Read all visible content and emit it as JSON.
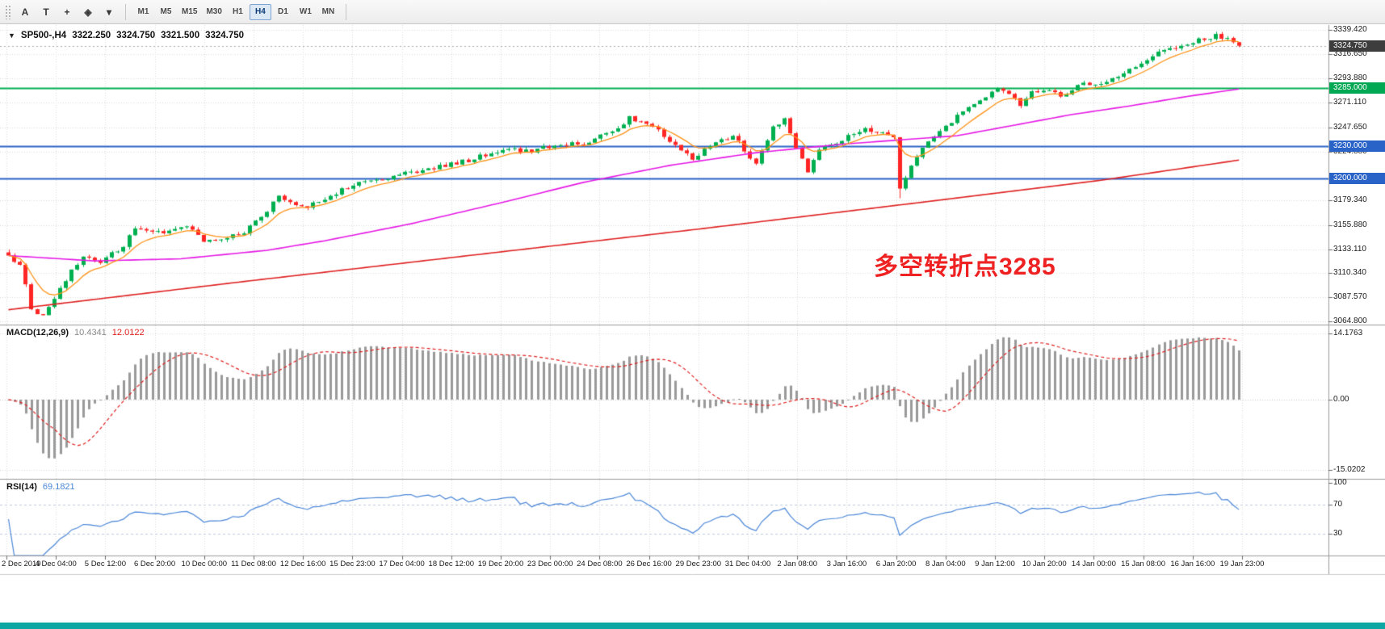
{
  "toolbar": {
    "tools": [
      {
        "name": "pointer-tool-icon",
        "glyph": "A"
      },
      {
        "name": "text-label-tool-icon",
        "glyph": "T"
      },
      {
        "name": "crosshair-tool-icon",
        "glyph": "+"
      },
      {
        "name": "shapes-tool-icon",
        "glyph": "◈"
      },
      {
        "name": "shapes-dropdown-icon",
        "glyph": "▾"
      }
    ],
    "timeframes": [
      "M1",
      "M5",
      "M15",
      "M30",
      "H1",
      "H4",
      "D1",
      "W1",
      "MN"
    ],
    "active_timeframe": "H4"
  },
  "chart_header": {
    "dropdown_glyph": "▼",
    "symbol_period": "SP500-,H4",
    "open": "3322.250",
    "high": "3324.750",
    "low": "3321.500",
    "close": "3324.750"
  },
  "price_scale": {
    "ticks": [
      {
        "label": "3339.420",
        "value": 3339.42
      },
      {
        "label": "3316.650",
        "value": 3316.65
      },
      {
        "label": "3293.880",
        "value": 3293.88
      },
      {
        "label": "3271.110",
        "value": 3271.11
      },
      {
        "label": "3247.650",
        "value": 3247.65
      },
      {
        "label": "3224.880",
        "value": 3224.88
      },
      {
        "label": "3179.340",
        "value": 3179.34
      },
      {
        "label": "3155.880",
        "value": 3155.88
      },
      {
        "label": "3133.110",
        "value": 3133.11
      },
      {
        "label": "3110.340",
        "value": 3110.34
      },
      {
        "label": "3087.570",
        "value": 3087.57
      },
      {
        "label": "3064.800",
        "value": 3064.8
      }
    ],
    "current_price": {
      "label": "3324.750",
      "value": 3324.75,
      "box_color": "#3d3d3d"
    },
    "level_badges": [
      {
        "label": "3285.000",
        "value": 3285,
        "box_color": "#00a854"
      },
      {
        "label": "3230.000",
        "value": 3230,
        "box_color": "#2a63c8"
      },
      {
        "label": "3200.000",
        "value": 3200,
        "box_color": "#2a63c8"
      }
    ]
  },
  "annotation": {
    "text": "多空转折点3285",
    "color": "#ee2222"
  },
  "macd_panel": {
    "label": "MACD(12,26,9)",
    "value_main": "10.4341",
    "value_signal": "12.0122",
    "main_value_color": "#8a8a8a",
    "signal_value_color": "#e02020",
    "histogram_color": "#9a9a9a",
    "signal_line_color": "#e02020",
    "scale": [
      {
        "label": "14.1763",
        "value": 14.1763
      },
      {
        "label": "0.00",
        "value": 0
      },
      {
        "label": "-15.0202",
        "value": -15.0202
      }
    ]
  },
  "rsi_panel": {
    "label": "RSI(14)",
    "value": "69.1821",
    "line_color": "#4a86d8",
    "scale": [
      {
        "label": "100",
        "value": 100
      },
      {
        "label": "70",
        "value": 70
      },
      {
        "label": "30",
        "value": 30
      }
    ],
    "levels": [
      70,
      30
    ]
  },
  "time_axis": {
    "labels": [
      "2 Dec 2019",
      "4 Dec 04:00",
      "5 Dec 12:00",
      "6 Dec 20:00",
      "10 Dec 00:00",
      "11 Dec 08:00",
      "12 Dec 16:00",
      "15 Dec 23:00",
      "17 Dec 04:00",
      "18 Dec 12:00",
      "19 Dec 20:00",
      "23 Dec 00:00",
      "24 Dec 08:00",
      "26 Dec 16:00",
      "29 Dec 23:00",
      "31 Dec 04:00",
      "2 Jan 08:00",
      "3 Jan 16:00",
      "6 Jan 20:00",
      "8 Jan 04:00",
      "9 Jan 12:00",
      "10 Jan 20:00",
      "14 Jan 00:00",
      "15 Jan 08:00",
      "16 Jan 16:00",
      "19 Jan 23:00"
    ]
  },
  "taskbar": {
    "color": "#0ca6a3"
  },
  "chart_data": {
    "type": "candlestick",
    "symbol": "SP500-",
    "timeframe": "H4",
    "title": "SP500-,H4",
    "ohlc_current": {
      "open": 3322.25,
      "high": 3324.75,
      "low": 3321.5,
      "close": 3324.75
    },
    "visible_price_range": [
      3064.8,
      3339.42
    ],
    "time_start": "2 Dec 2019",
    "time_end": "19 Jan 23:00",
    "candles_count": 215,
    "up_color": "#00b050",
    "down_color": "#ff2525",
    "close_waypoints": [
      [
        0,
        3128
      ],
      [
        2,
        3118
      ],
      [
        4,
        3078
      ],
      [
        6,
        3070
      ],
      [
        8,
        3086
      ],
      [
        10,
        3105
      ],
      [
        13,
        3126
      ],
      [
        16,
        3120
      ],
      [
        20,
        3136
      ],
      [
        22,
        3153
      ],
      [
        27,
        3150
      ],
      [
        31,
        3156
      ],
      [
        34,
        3141
      ],
      [
        38,
        3144
      ],
      [
        41,
        3150
      ],
      [
        45,
        3170
      ],
      [
        47,
        3184
      ],
      [
        51,
        3172
      ],
      [
        54,
        3178
      ],
      [
        60,
        3195
      ],
      [
        66,
        3201
      ],
      [
        73,
        3208
      ],
      [
        80,
        3217
      ],
      [
        87,
        3228
      ],
      [
        91,
        3224
      ],
      [
        94,
        3230
      ],
      [
        101,
        3234
      ],
      [
        106,
        3248
      ],
      [
        108,
        3257
      ],
      [
        112,
        3250
      ],
      [
        115,
        3235
      ],
      [
        119,
        3218
      ],
      [
        122,
        3232
      ],
      [
        126,
        3240
      ],
      [
        130,
        3213
      ],
      [
        133,
        3247
      ],
      [
        135,
        3258
      ],
      [
        137,
        3230
      ],
      [
        139,
        3207
      ],
      [
        141,
        3226
      ],
      [
        146,
        3240
      ],
      [
        149,
        3246
      ],
      [
        152,
        3244
      ],
      [
        154,
        3238
      ],
      [
        155,
        3192
      ],
      [
        157,
        3212
      ],
      [
        159,
        3228
      ],
      [
        162,
        3244
      ],
      [
        165,
        3258
      ],
      [
        168,
        3270
      ],
      [
        172,
        3286
      ],
      [
        174,
        3280
      ],
      [
        176,
        3268
      ],
      [
        178,
        3280
      ],
      [
        180,
        3283
      ],
      [
        183,
        3278
      ],
      [
        187,
        3290
      ],
      [
        190,
        3288
      ],
      [
        194,
        3298
      ],
      [
        197,
        3308
      ],
      [
        200,
        3318
      ],
      [
        203,
        3324
      ],
      [
        207,
        3330
      ],
      [
        210,
        3334
      ],
      [
        212,
        3330
      ],
      [
        214,
        3324.75
      ]
    ],
    "noise_seed": 12,
    "noise_amplitude": 2.2,
    "wick_amplitude": 2.6,
    "spike": {
      "index": 155,
      "low": 3181
    },
    "last_close": 3324.75,
    "moving_averages": [
      {
        "name": "ma-fast",
        "color": "#ff9318",
        "type": "ema_of_closes",
        "period": 8
      },
      {
        "name": "ma-mid",
        "color": "#e619e6",
        "type": "waypoints",
        "waypoints": [
          [
            0,
            3127
          ],
          [
            15,
            3122
          ],
          [
            30,
            3124
          ],
          [
            45,
            3132
          ],
          [
            55,
            3141
          ],
          [
            70,
            3157
          ],
          [
            85,
            3176
          ],
          [
            100,
            3196
          ],
          [
            115,
            3212
          ],
          [
            130,
            3224
          ],
          [
            145,
            3232
          ],
          [
            155,
            3236
          ],
          [
            165,
            3240
          ],
          [
            175,
            3250
          ],
          [
            185,
            3260
          ],
          [
            195,
            3268
          ],
          [
            205,
            3277
          ],
          [
            214,
            3284
          ]
        ]
      },
      {
        "name": "ma-slow",
        "color": "#e02020",
        "type": "waypoints",
        "waypoints": [
          [
            0,
            3076
          ],
          [
            40,
            3102
          ],
          [
            80,
            3127
          ],
          [
            120,
            3152
          ],
          [
            160,
            3178
          ],
          [
            190,
            3198
          ],
          [
            214,
            3217
          ]
        ]
      }
    ],
    "horizontal_lines": [
      {
        "value": 3285,
        "color": "#00b050",
        "label": "3285.000"
      },
      {
        "value": 3230,
        "color": "#2a63c8",
        "label": "3230.000"
      },
      {
        "value": 3200,
        "color": "#2a63c8",
        "label": "3200.000"
      }
    ],
    "indicators": [
      {
        "type": "MACD",
        "params": [
          12,
          26,
          9
        ],
        "current_main": 10.4341,
        "current_signal": 12.0122,
        "scale_min": -15.0202,
        "scale_max": 14.1763
      },
      {
        "type": "RSI",
        "params": [
          14
        ],
        "current": 69.1821,
        "range": [
          0,
          100
        ],
        "levels": [
          30,
          70
        ]
      }
    ]
  }
}
